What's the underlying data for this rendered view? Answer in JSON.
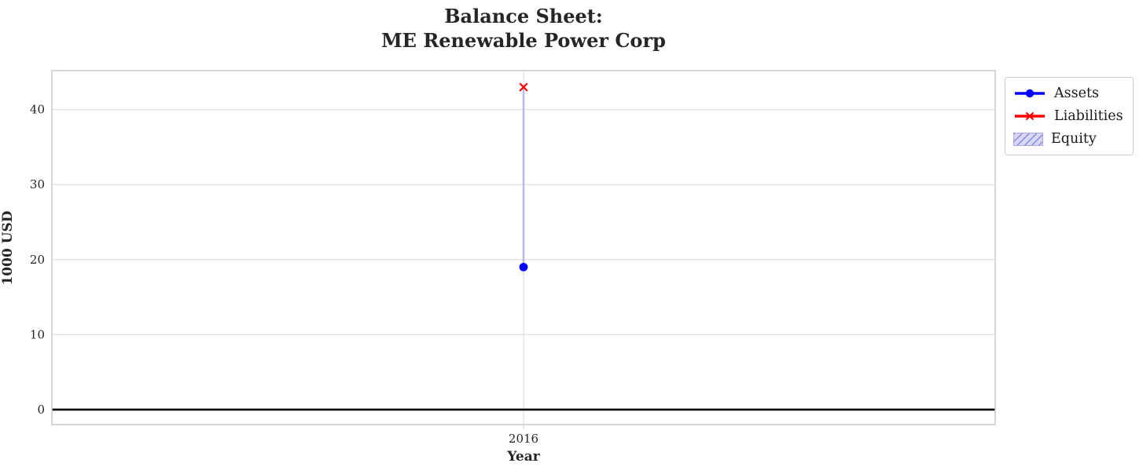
{
  "title": {
    "line1": "Balance Sheet:",
    "line2": "ME Renewable Power Corp"
  },
  "chart_data": {
    "type": "line",
    "x": [
      2016
    ],
    "xticks": [
      "2016"
    ],
    "yticks": [
      0,
      10,
      20,
      30,
      40
    ],
    "ylim": [
      -2,
      45.2
    ],
    "xlabel": "Year",
    "ylabel": "1000 USD",
    "grid": true,
    "series": [
      {
        "name": "Assets",
        "values": [
          19
        ],
        "color": "#0000ff",
        "marker": "o"
      },
      {
        "name": "Liabilities",
        "values": [
          43
        ],
        "color": "#ff0000",
        "marker": "x"
      },
      {
        "name": "Equity",
        "values": [
          -24
        ],
        "render": "band_between_series",
        "band": [
          19,
          43
        ],
        "fill": "#ccccf2",
        "hatch_color": "#8888dd",
        "edge_color": "#b9b9ea"
      }
    ],
    "zero_line": {
      "y": 0,
      "color": "#000000"
    },
    "legend_position": "upper right, outside axes"
  },
  "legend": {
    "items": [
      {
        "label": "Assets"
      },
      {
        "label": "Liabilities"
      },
      {
        "label": "Equity"
      }
    ]
  },
  "colors": {
    "grid": "#dcdcdc",
    "spine": "#cccccc",
    "text": "#262626",
    "tick_text": "#333333"
  }
}
